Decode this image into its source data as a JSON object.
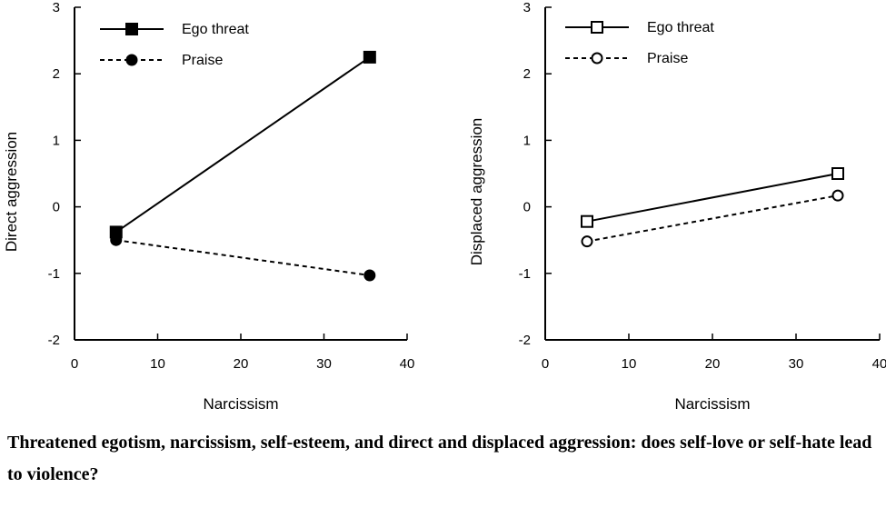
{
  "chart_data": [
    {
      "type": "line",
      "xlabel": "Narcissism",
      "ylabel": "Direct aggression",
      "xlim": [
        0,
        40
      ],
      "ylim": [
        -2,
        3
      ],
      "xticks": [
        0,
        10,
        20,
        30,
        40
      ],
      "yticks": [
        -2,
        -1,
        0,
        1,
        2,
        3
      ],
      "grid": false,
      "legend": "top-left",
      "series": [
        {
          "name": "Ego threat",
          "marker": "filled-square",
          "linestyle": "solid",
          "x": [
            5,
            35.5
          ],
          "y": [
            -0.38,
            2.25
          ]
        },
        {
          "name": "Praise",
          "marker": "filled-circle",
          "linestyle": "dashed",
          "x": [
            5,
            35.5
          ],
          "y": [
            -0.5,
            -1.03
          ]
        }
      ]
    },
    {
      "type": "line",
      "xlabel": "Narcissism",
      "ylabel": "Displaced aggression",
      "xlim": [
        0,
        40
      ],
      "ylim": [
        -2,
        3
      ],
      "xticks": [
        0,
        10,
        20,
        30,
        40
      ],
      "yticks": [
        -2,
        -1,
        0,
        1,
        2,
        3
      ],
      "grid": false,
      "legend": "top-left",
      "series": [
        {
          "name": "Ego threat",
          "marker": "open-square",
          "linestyle": "solid",
          "x": [
            5,
            35
          ],
          "y": [
            -0.22,
            0.5
          ]
        },
        {
          "name": "Praise",
          "marker": "open-circle",
          "linestyle": "dashed",
          "x": [
            5,
            35
          ],
          "y": [
            -0.52,
            0.17
          ]
        }
      ]
    }
  ],
  "caption": "Threatened egotism, narcissism, self-esteem, and direct and displaced aggression: does self-love or self-hate lead to violence?"
}
